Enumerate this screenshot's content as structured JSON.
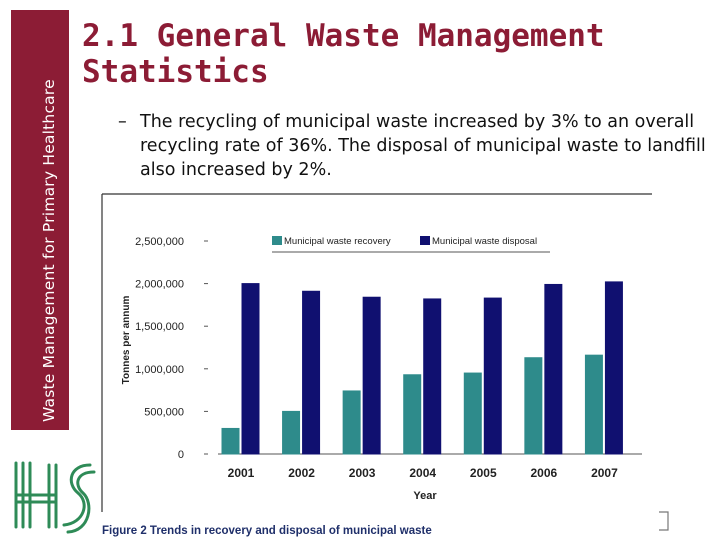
{
  "sidebar": {
    "label": "Waste Management for Primary Healthcare"
  },
  "slide": {
    "title": "2.1 General Waste Management Statistics",
    "bullet_dash": "–",
    "bullet_text": "The recycling of municipal waste increased by 3% to an overall recycling rate of 36%.  The disposal of municipal waste to landfill also increased by 2%."
  },
  "logo": {
    "name": "hse-logo"
  },
  "colors": {
    "accent": "#8c1c35",
    "recovery": "#2e8b8b",
    "disposal": "#101070"
  },
  "chart_data": {
    "type": "bar",
    "title": "",
    "caption": "Figure 2 Trends in recovery and disposal of municipal waste",
    "xlabel": "Year",
    "ylabel": "Tonnes per annum",
    "categories": [
      "2001",
      "2002",
      "2003",
      "2004",
      "2005",
      "2006",
      "2007"
    ],
    "series": [
      {
        "name": "Municipal waste recovery",
        "color": "#2e8b8b",
        "values": [
          300000,
          500000,
          740000,
          930000,
          950000,
          1130000,
          1160000
        ]
      },
      {
        "name": "Municipal waste disposal",
        "color": "#101070",
        "values": [
          2000000,
          1910000,
          1840000,
          1820000,
          1830000,
          1990000,
          2020000
        ]
      }
    ],
    "ylim": [
      0,
      2500000
    ],
    "yticks": [
      0,
      500000,
      1000000,
      1500000,
      2000000,
      2500000
    ],
    "ytick_labels": [
      "0",
      "500,000",
      "1,000,000",
      "1,500,000",
      "2,000,000",
      "2,500,000"
    ],
    "legend_position": "top"
  }
}
